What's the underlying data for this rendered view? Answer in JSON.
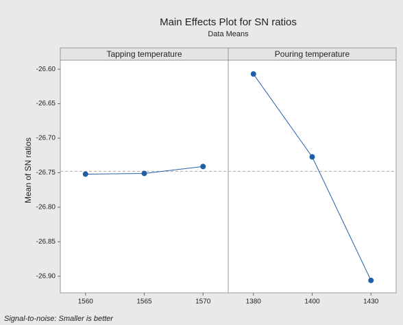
{
  "chart_data": {
    "type": "line",
    "title": "Main Effects Plot for SN ratios",
    "subtitle": "Data Means",
    "ylabel": "Mean of SN ratios",
    "footnote": "Signal-to-noise: Smaller is better",
    "color": "#1f5fa8",
    "reference_line": -26.748,
    "ylim": [
      -26.924,
      -26.587
    ],
    "yticks": [
      {
        "value": -26.6,
        "label": "-26.60"
      },
      {
        "value": -26.65,
        "label": "-26.65"
      },
      {
        "value": -26.7,
        "label": "-26.70"
      },
      {
        "value": -26.75,
        "label": "-26.75"
      },
      {
        "value": -26.8,
        "label": "-26.80"
      },
      {
        "value": -26.85,
        "label": "-26.85"
      },
      {
        "value": -26.9,
        "label": "-26.90"
      }
    ],
    "panels": [
      {
        "title": "Tapping temperature",
        "categories": [
          "1560",
          "1565",
          "1570"
        ],
        "values": [
          -26.752,
          -26.751,
          -26.741
        ]
      },
      {
        "title": "Pouring temperature",
        "categories": [
          "1380",
          "1400",
          "1430"
        ],
        "values": [
          -26.607,
          -26.727,
          -26.906
        ]
      }
    ]
  }
}
